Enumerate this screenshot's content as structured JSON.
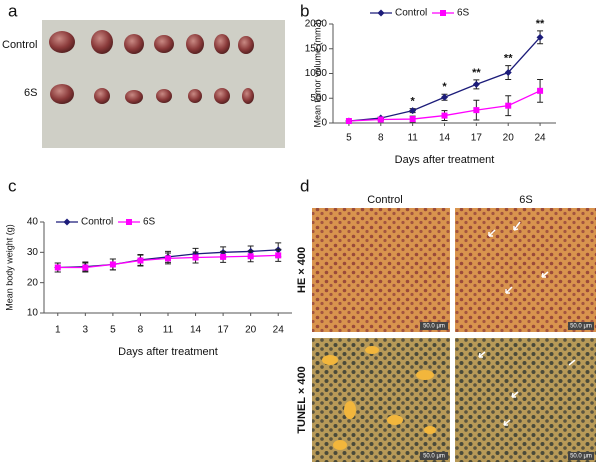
{
  "panels": {
    "a": {
      "letter": "a",
      "row_labels": [
        "Control",
        "6S"
      ]
    },
    "d": {
      "letter": "d",
      "column_labels": [
        "Control",
        "6S"
      ],
      "row_labels": [
        "HE × 400",
        "TUNEL × 400"
      ],
      "scale_labels": [
        "50.0 μm",
        "50.0 μm",
        "50.0 μm",
        "50.0 μm"
      ]
    }
  },
  "chart_data": [
    {
      "type": "line",
      "panel": "b",
      "x_label": "Days after treatment",
      "y_label": "Mean tumor volume (mm3)",
      "categories": [
        "5",
        "8",
        "11",
        "14",
        "17",
        "20",
        "24"
      ],
      "ylim": [
        0,
        2000
      ],
      "yticks": [
        0,
        500,
        1000,
        1500,
        2000
      ],
      "grid": false,
      "legend": "top-left",
      "significance": [
        null,
        null,
        "*",
        "*",
        "**",
        "**",
        "**"
      ],
      "series": [
        {
          "name": "Control",
          "color": "#1c1c7a",
          "marker": "diamond",
          "values": [
            40,
            100,
            250,
            520,
            780,
            1020,
            1730
          ],
          "errors": [
            10,
            20,
            40,
            60,
            90,
            140,
            130
          ]
        },
        {
          "name": "6S",
          "color": "#ff00ff",
          "marker": "square",
          "values": [
            40,
            70,
            80,
            150,
            260,
            350,
            650
          ],
          "errors": [
            10,
            20,
            60,
            100,
            200,
            200,
            230
          ]
        }
      ]
    },
    {
      "type": "line",
      "panel": "c",
      "x_label": "Days after treatment",
      "y_label": "Mean body weight (g)",
      "categories": [
        "1",
        "3",
        "5",
        "8",
        "11",
        "14",
        "17",
        "20",
        "24"
      ],
      "ylim": [
        10,
        40
      ],
      "yticks": [
        10,
        20,
        30,
        40
      ],
      "grid": false,
      "legend": "top-left",
      "series": [
        {
          "name": "Control",
          "color": "#1c1c7a",
          "marker": "diamond",
          "values": [
            25,
            25.3,
            26,
            27.5,
            28.5,
            29.5,
            30,
            30.3,
            30.8
          ],
          "errors": [
            1.5,
            1.5,
            1.8,
            1.8,
            1.8,
            1.8,
            1.8,
            1.8,
            2.3
          ]
        },
        {
          "name": "6S",
          "color": "#ff00ff",
          "marker": "square",
          "values": [
            25,
            25,
            26,
            27.3,
            28,
            28.3,
            28.5,
            28.7,
            29
          ],
          "errors": [
            1.5,
            1.5,
            1.8,
            1.8,
            1.8,
            1.8,
            1.8,
            1.8,
            2.0
          ]
        }
      ]
    }
  ]
}
